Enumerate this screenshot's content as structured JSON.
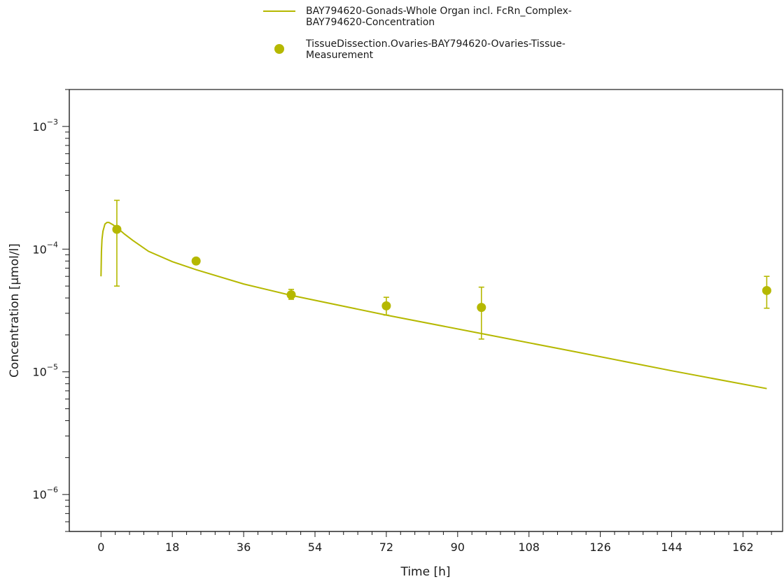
{
  "chart_data": {
    "type": "line",
    "xlabel": "Time [h]",
    "ylabel": "Concentration [µmol/l]",
    "xlim": [
      -8,
      172
    ],
    "ylim": [
      5e-07,
      0.002
    ],
    "yscale": "log",
    "xticks": [
      0,
      18,
      36,
      54,
      72,
      90,
      108,
      126,
      144,
      162
    ],
    "yticks": [
      {
        "value": 1e-06,
        "base": "10",
        "exp": "−6"
      },
      {
        "value": 1e-05,
        "base": "10",
        "exp": "−5"
      },
      {
        "value": 0.0001,
        "base": "10",
        "exp": "−4"
      },
      {
        "value": 0.001,
        "base": "10",
        "exp": "−3"
      }
    ],
    "grid": false,
    "legend_position": "top-center",
    "color": "#b5b800",
    "series": [
      {
        "name": "BAY794620-Gonads-Whole Organ incl. FcRn_Complex-BAY794620-Concentration",
        "legend_lines": [
          "BAY794620-Gonads-Whole Organ incl. FcRn_Complex-",
          "BAY794620-Concentration"
        ],
        "kind": "line",
        "x": [
          0,
          0.1,
          0.25,
          0.5,
          1,
          1.5,
          2,
          3,
          4,
          6,
          8,
          12,
          18,
          24,
          36,
          48,
          72,
          96,
          120,
          144,
          168
        ],
        "y": [
          6e-05,
          9.5e-05,
          0.00012,
          0.00014,
          0.00016,
          0.000165,
          0.000165,
          0.000158,
          0.00015,
          0.000132,
          0.000118,
          9.6e-05,
          7.9e-05,
          6.8e-05,
          5.2e-05,
          4.2e-05,
          2.9e-05,
          2.05e-05,
          1.45e-05,
          1.02e-05,
          7.3e-06
        ]
      },
      {
        "name": "TissueDissection.Ovaries-BAY794620-Ovaries-Tissue-Measurement",
        "legend_lines": [
          "TissueDissection.Ovaries-BAY794620-Ovaries-Tissue-",
          "Measurement"
        ],
        "kind": "scatter",
        "points": [
          {
            "x": 4,
            "y": 0.000145,
            "low": 5e-05,
            "high": 0.00025
          },
          {
            "x": 24,
            "y": 8e-05
          },
          {
            "x": 48,
            "y": 4.25e-05,
            "low": 3.9e-05,
            "high": 4.7e-05
          },
          {
            "x": 72,
            "y": 3.45e-05,
            "low": 2.9e-05,
            "high": 4.05e-05
          },
          {
            "x": 96,
            "y": 3.35e-05,
            "low": 1.85e-05,
            "high": 4.9e-05
          },
          {
            "x": 168,
            "y": 4.6e-05,
            "low": 3.3e-05,
            "high": 6e-05
          }
        ]
      }
    ]
  }
}
